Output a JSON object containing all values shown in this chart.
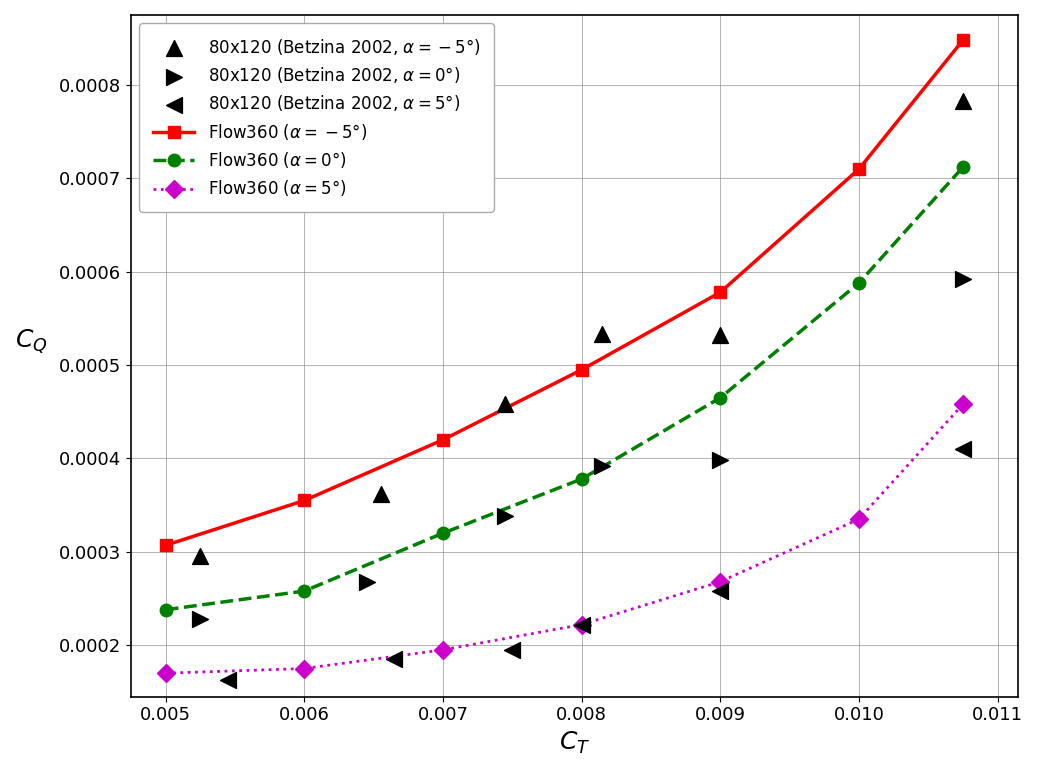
{
  "xlabel": "$C_T$",
  "ylabel": "$C_Q$",
  "xlim": [
    0.00475,
    0.01115
  ],
  "ylim": [
    0.000145,
    0.000875
  ],
  "flow360_alpha_neg5_x": [
    0.005,
    0.006,
    0.007,
    0.008,
    0.009,
    0.01,
    0.01075
  ],
  "flow360_alpha_neg5_y": [
    0.000307,
    0.000355,
    0.00042,
    0.000495,
    0.000578,
    0.00071,
    0.000848
  ],
  "flow360_alpha_0_x": [
    0.005,
    0.006,
    0.007,
    0.008,
    0.009,
    0.01,
    0.01075
  ],
  "flow360_alpha_0_y": [
    0.000238,
    0.000258,
    0.00032,
    0.000378,
    0.000465,
    0.000588,
    0.000712
  ],
  "flow360_alpha_5_x": [
    0.005,
    0.006,
    0.007,
    0.008,
    0.009,
    0.01,
    0.01075
  ],
  "flow360_alpha_5_y": [
    0.00017,
    0.000175,
    0.000195,
    0.000222,
    0.000268,
    0.000335,
    0.000458
  ],
  "betz_alpha_neg5_x": [
    0.00525,
    0.00655,
    0.00745,
    0.00815,
    0.009,
    0.01075
  ],
  "betz_alpha_neg5_y": [
    0.000295,
    0.000362,
    0.000458,
    0.000533,
    0.000532,
    0.000783
  ],
  "betz_alpha_0_x": [
    0.00525,
    0.00645,
    0.00745,
    0.00815,
    0.009,
    0.01075
  ],
  "betz_alpha_0_y": [
    0.000228,
    0.000268,
    0.000338,
    0.000392,
    0.000398,
    0.000592
  ],
  "betz_alpha_5_x": [
    0.00545,
    0.00665,
    0.0075,
    0.008,
    0.009,
    0.01075
  ],
  "betz_alpha_5_y": [
    0.000163,
    0.000185,
    0.000195,
    0.000222,
    0.000258,
    0.00041
  ],
  "color_red": "#ff0000",
  "color_green": "#008000",
  "color_magenta": "#cc00cc",
  "color_black": "#000000",
  "legend_labels": [
    "80x120 (Betzina 2002, $\\alpha = -5\\degree$)",
    "80x120 (Betzina 2002, $\\alpha = 0\\degree$)",
    "80x120 (Betzina 2002, $\\alpha = 5\\degree$)",
    "Flow360 ($\\alpha = -5\\degree$)",
    "Flow360 ($\\alpha = 0\\degree$)",
    "Flow360 ($\\alpha = 5\\degree$)"
  ]
}
